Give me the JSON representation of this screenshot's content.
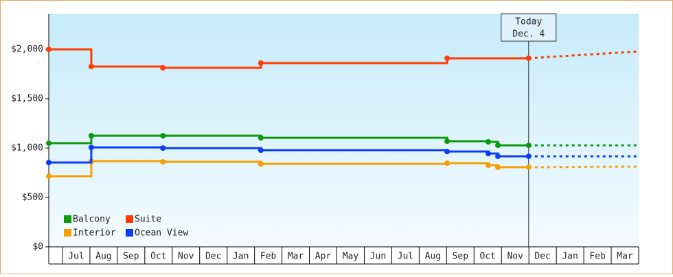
{
  "chart_data": {
    "type": "step",
    "categories": [
      null,
      "Jul",
      "Aug",
      "Sep",
      "Oct",
      "Nov",
      "Dec",
      "Jan",
      "Feb",
      "Mar",
      "Apr",
      "May",
      "Jun",
      "Jul",
      "Aug",
      "Sep",
      "Oct",
      "Nov",
      "Dec",
      "Jan",
      "Feb",
      "Mar"
    ],
    "xlim": [
      -0.5,
      21
    ],
    "ylim": [
      0,
      2361
    ],
    "yticks": [
      {
        "value": 0,
        "label": "$0"
      },
      {
        "value": 500,
        "label": "$500"
      },
      {
        "value": 1000,
        "label": "$1,000"
      },
      {
        "value": 1500,
        "label": "$1,500"
      },
      {
        "value": 2000,
        "label": "$2,000"
      }
    ],
    "today": {
      "x": 16.99,
      "label": "Today",
      "date": "Dec. 4"
    },
    "projection_x": [
      16.99,
      21
    ],
    "series": [
      {
        "name": "Balcony",
        "color": "#0a9a0a",
        "x": [
          -0.5,
          1.05,
          3.66,
          7.23,
          14.02,
          15.52,
          15.87,
          16.99
        ],
        "values": [
          1049,
          1125,
          1125,
          1104,
          1069,
          1063,
          1028,
          1028
        ],
        "projection": [
          1028,
          1028
        ]
      },
      {
        "name": "Suite",
        "color": "#ff3c00",
        "x": [
          -0.5,
          1.05,
          3.66,
          7.23,
          14.02,
          16.99
        ],
        "values": [
          2000,
          1826,
          1813,
          1861,
          1910,
          1910
        ],
        "projection": [
          1910,
          1979
        ]
      },
      {
        "name": "Interior",
        "color": "#f5a000",
        "x": [
          -0.5,
          1.05,
          3.66,
          7.23,
          14.02,
          15.52,
          15.87,
          16.99
        ],
        "values": [
          715,
          868,
          861,
          840,
          847,
          826,
          806,
          806
        ],
        "projection": [
          806,
          813
        ]
      },
      {
        "name": "Ocean View",
        "color": "#0a3cf5",
        "x": [
          -0.5,
          1.05,
          3.66,
          7.23,
          14.02,
          15.52,
          15.87,
          16.99
        ],
        "values": [
          854,
          1007,
          1000,
          979,
          965,
          944,
          917,
          917
        ],
        "projection": [
          917,
          917
        ]
      }
    ]
  }
}
